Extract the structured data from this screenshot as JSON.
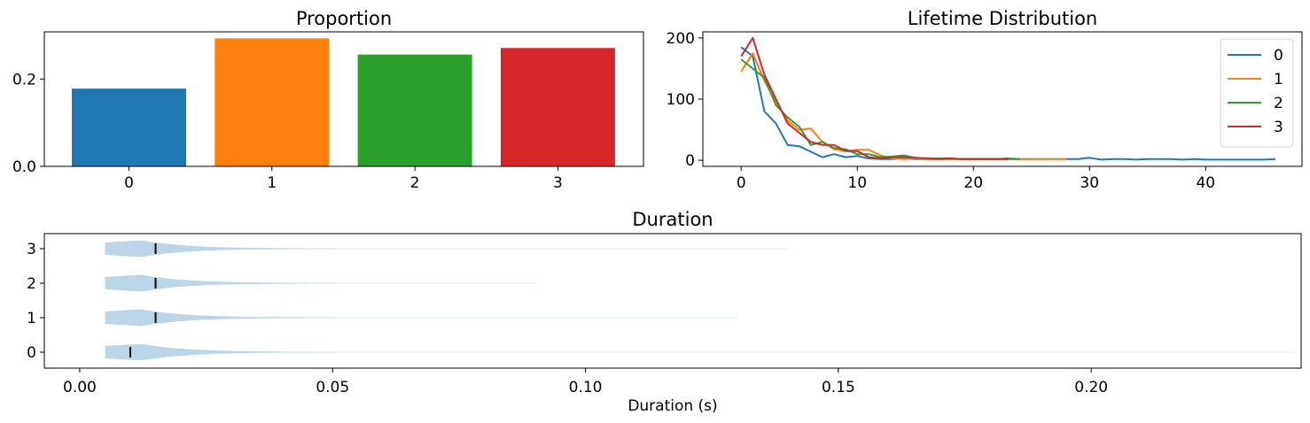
{
  "chart_data": [
    {
      "type": "bar",
      "title": "Proportion",
      "categories": [
        "0",
        "1",
        "2",
        "3"
      ],
      "values": [
        0.178,
        0.293,
        0.256,
        0.271
      ],
      "colors": [
        "#1f77b4",
        "#ff7f0e",
        "#2ca02c",
        "#d62728"
      ],
      "ylim": [
        0,
        0.308
      ],
      "yticks": [
        "0.0",
        "0.2"
      ],
      "xlabel": "",
      "ylabel": "",
      "grid": false
    },
    {
      "type": "line",
      "title": "Lifetime Distribution",
      "xlim": [
        -3.3,
        48.3
      ],
      "ylim": [
        -10,
        210
      ],
      "xticks": [
        "0",
        "10",
        "20",
        "30",
        "40"
      ],
      "yticks": [
        "0",
        "100",
        "200"
      ],
      "legend": "top-right",
      "grid": false,
      "series": [
        {
          "name": "0",
          "color": "#1f77b4",
          "y": [
            185,
            170,
            80,
            60,
            25,
            23,
            14,
            5,
            10,
            5,
            7,
            3,
            2,
            2,
            3,
            2,
            2,
            2,
            2,
            2,
            2,
            2,
            2,
            3,
            2,
            2,
            2,
            2,
            2,
            2,
            4,
            1,
            2,
            2,
            1,
            2,
            2,
            2,
            1,
            2,
            1,
            1,
            1,
            1,
            1,
            1,
            2
          ]
        },
        {
          "name": "1",
          "color": "#ff7f0e",
          "y": [
            145,
            175,
            130,
            95,
            65,
            50,
            52,
            30,
            18,
            15,
            17,
            17,
            8,
            3,
            2,
            3,
            2,
            2,
            2,
            2,
            2,
            2,
            2,
            2,
            2,
            2,
            2,
            2,
            2
          ]
        },
        {
          "name": "2",
          "color": "#2ca02c",
          "y": [
            165,
            150,
            135,
            90,
            70,
            55,
            25,
            30,
            20,
            18,
            10,
            10,
            5,
            6,
            8,
            4,
            3,
            3,
            3,
            2,
            2,
            2,
            2,
            2,
            2
          ]
        },
        {
          "name": "3",
          "color": "#d62728",
          "y": [
            170,
            200,
            140,
            100,
            60,
            45,
            30,
            25,
            25,
            15,
            15,
            5,
            3,
            5,
            5,
            4,
            3,
            2,
            3,
            2,
            2,
            2,
            2,
            2
          ]
        }
      ]
    },
    {
      "type": "violin",
      "title": "Duration",
      "xlabel": "Duration (s)",
      "xlim": [
        -0.007,
        0.2415
      ],
      "xticks": [
        "0.00",
        "0.05",
        "0.10",
        "0.15",
        "0.20"
      ],
      "categories": [
        "0",
        "1",
        "2",
        "3"
      ],
      "medians": [
        0.01,
        0.015,
        0.015,
        0.015
      ],
      "min": [
        0.005,
        0.005,
        0.005,
        0.005
      ],
      "max": [
        0.24,
        0.13,
        0.09,
        0.14
      ],
      "color": "#1f77b4"
    }
  ]
}
